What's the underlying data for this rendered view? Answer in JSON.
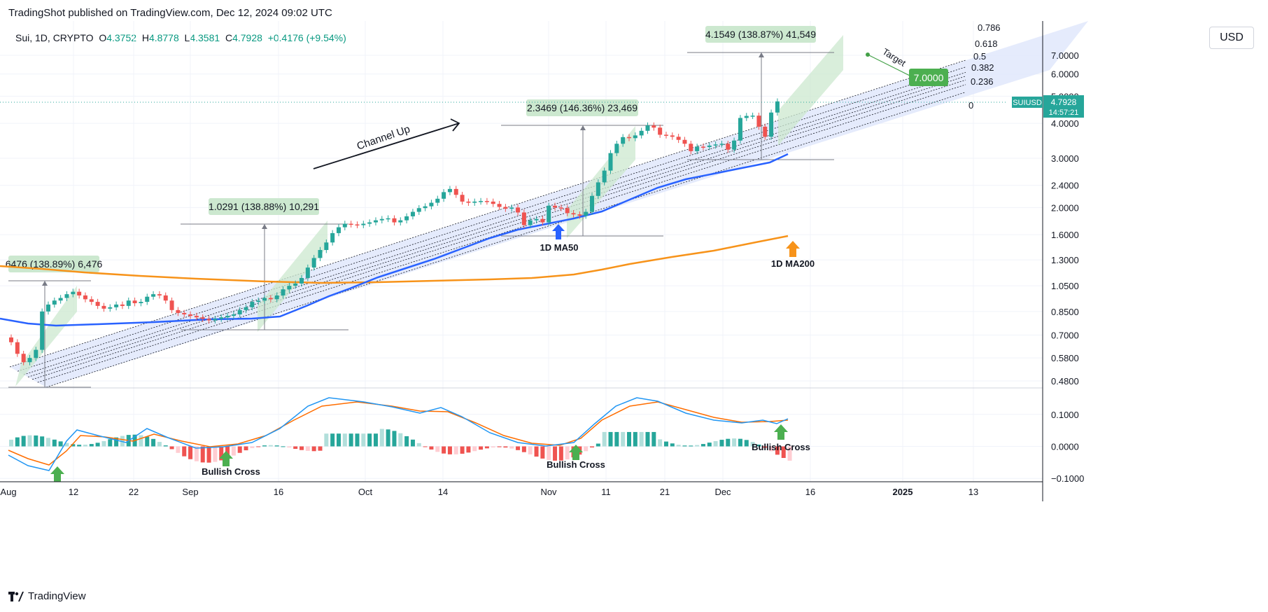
{
  "header": {
    "publisher": "TradingShot published on TradingView.com, Dec 12, 2024 09:02 UTC",
    "symbol": "Sui, 1D, CRYPTO",
    "ohlc": [
      {
        "label": "O",
        "value": "4.3752"
      },
      {
        "label": "H",
        "value": "4.8778"
      },
      {
        "label": "L",
        "value": "4.3581"
      },
      {
        "label": "C",
        "value": "4.7928"
      }
    ],
    "change": "+0.4176 (+9.54%)"
  },
  "currency_button": "USD",
  "footer": {
    "brand": "TradingView"
  },
  "price_badge": {
    "ticker": "SUIUSD",
    "price": "4.7928",
    "countdown": "14:57:21"
  },
  "target_box": "7.0000",
  "colors": {
    "up": "#26a69a",
    "down": "#ef5350",
    "ma50": "#2962ff",
    "ma200": "#f7931a",
    "macd": "#2196f3",
    "signal": "#ff6d00",
    "channel_fill": "#dfe6fb",
    "measure_fill": "#cce8cf"
  },
  "chart_data": [
    {
      "type": "candlestick",
      "title": "Sui, 1D, CRYPTO",
      "y_scale": "log",
      "y_ticks": [
        "7.0000",
        "6.0000",
        "5.0000",
        "4.0000",
        "3.0000",
        "2.4000",
        "2.0000",
        "1.6000",
        "1.3000",
        "1.0500",
        "0.8500",
        "0.7000",
        "0.5800",
        "0.4800"
      ],
      "x_ticks": [
        "Aug",
        "12",
        "22",
        "Sep",
        "16",
        "Oct",
        "14",
        "Nov",
        "11",
        "21",
        "Dec",
        "16",
        "2025",
        "13"
      ],
      "closes": [
        0.66,
        0.6,
        0.56,
        0.58,
        0.62,
        0.85,
        0.9,
        0.93,
        0.95,
        0.98,
        1.0,
        0.97,
        0.94,
        0.92,
        0.89,
        0.87,
        0.88,
        0.9,
        0.89,
        0.93,
        0.91,
        0.92,
        0.96,
        0.98,
        0.97,
        0.93,
        0.86,
        0.84,
        0.83,
        0.82,
        0.81,
        0.8,
        0.79,
        0.8,
        0.81,
        0.82,
        0.83,
        0.86,
        0.88,
        0.92,
        0.93,
        0.95,
        0.94,
        0.97,
        1.02,
        1.05,
        1.07,
        1.12,
        1.22,
        1.32,
        1.41,
        1.5,
        1.62,
        1.7,
        1.75,
        1.74,
        1.73,
        1.75,
        1.77,
        1.8,
        1.82,
        1.83,
        1.77,
        1.8,
        1.86,
        1.93,
        1.99,
        2.02,
        2.08,
        2.15,
        2.27,
        2.33,
        2.22,
        2.1,
        2.08,
        2.1,
        2.11,
        2.1,
        2.06,
        2.01,
        1.98,
        2.0,
        1.92,
        1.73,
        1.8,
        1.82,
        1.77,
        2.03,
        2.0,
        1.99,
        1.91,
        1.89,
        1.87,
        1.93,
        2.2,
        2.46,
        2.71,
        3.13,
        3.38,
        3.57,
        3.54,
        3.62,
        3.76,
        3.93,
        3.86,
        3.64,
        3.62,
        3.58,
        3.49,
        3.38,
        3.18,
        3.3,
        3.29,
        3.33,
        3.36,
        3.38,
        3.22,
        3.47,
        4.18,
        4.25,
        4.26,
        3.89,
        3.58,
        4.37,
        4.79
      ],
      "ma50": "1D MA50",
      "ma200": "1D MA200",
      "channel_label": "Channel Up",
      "fib_levels": [
        "0.786",
        "0.618",
        "0.5",
        "0.382",
        "0.236",
        "0"
      ],
      "measurements": [
        "6476 (138.89%) 6,476",
        "1.0291 (138.88%) 10,291",
        "2.3469 (146.36%) 23,469",
        "4.1549 (138.87%) 41,549"
      ],
      "target_label": "Target",
      "target_value": "7.0000"
    },
    {
      "type": "macd",
      "y_ticks": [
        "0.1000",
        "0.0000",
        "−0.1000"
      ],
      "annotations": [
        "Bullish Cross",
        "Bullish Cross",
        "Bullish Cross"
      ]
    }
  ]
}
